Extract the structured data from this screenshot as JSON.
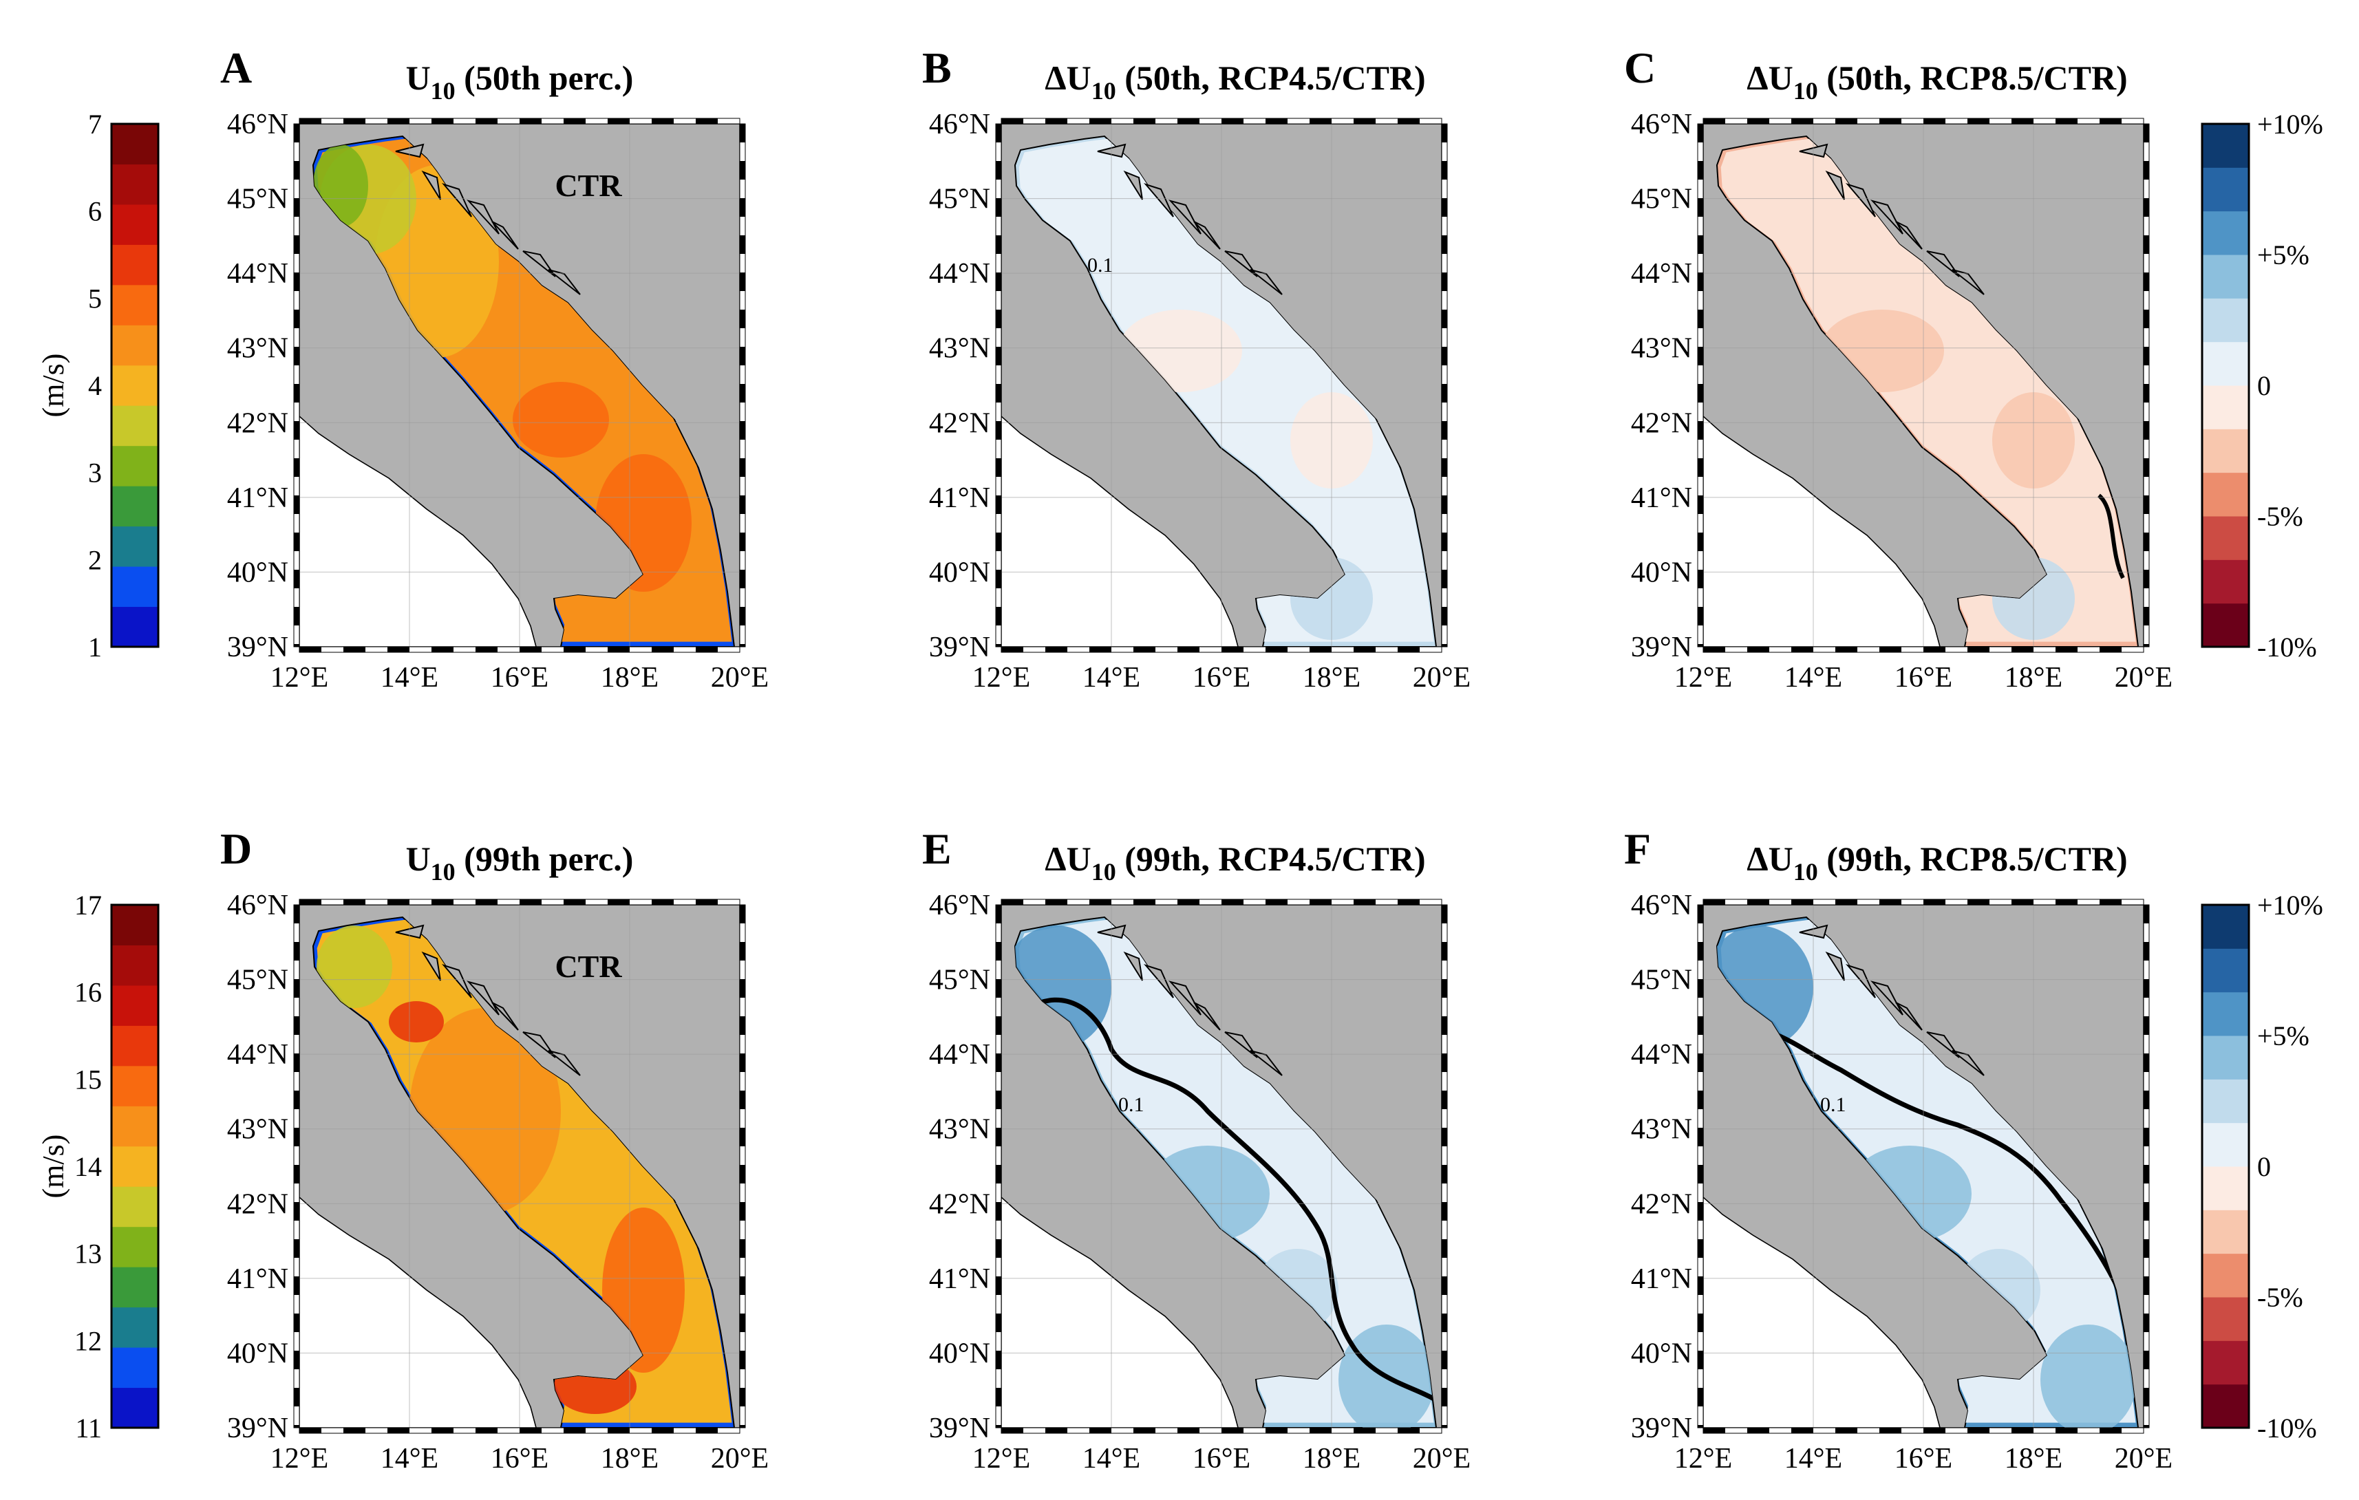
{
  "lat_ticks": [
    "39°N",
    "40°N",
    "41°N",
    "42°N",
    "43°N",
    "44°N",
    "45°N",
    "46°N"
  ],
  "lon_ticks": [
    "12°E",
    "14°E",
    "16°E",
    "18°E",
    "20°E"
  ],
  "contour_label": "0.1",
  "colors": {
    "land": "#b1b1b1",
    "outside": "#ffffff",
    "frame": "#000000"
  },
  "colorbars": [
    {
      "id": "u10-50",
      "unit": "(m/s)",
      "tick_labels": [
        "1",
        "2",
        "3",
        "4",
        "5",
        "6",
        "7"
      ],
      "colors": [
        "#0a14c8",
        "#0a4ef0",
        "#1a7d8e",
        "#3a9a3a",
        "#80b21a",
        "#c8c82a",
        "#f5b321",
        "#f7901a",
        "#f86a10",
        "#e8380c",
        "#c8120a",
        "#a50c0a",
        "#7a0606"
      ]
    },
    {
      "id": "dU-50",
      "unit": "",
      "tick_labels": [
        "+10%",
        "+5%",
        "0",
        "-5%",
        "-10%"
      ],
      "colors": [
        "#6b0019",
        "#a51a2d",
        "#cc4c44",
        "#ec8d6d",
        "#f8c7ae",
        "#fcebe3",
        "#e8f1f8",
        "#c1dbec",
        "#8cbfdd",
        "#4f94c6",
        "#2665a5",
        "#0e3b70"
      ]
    },
    {
      "id": "u10-99",
      "unit": "(m/s)",
      "tick_labels": [
        "11",
        "12",
        "13",
        "14",
        "15",
        "16",
        "17"
      ],
      "colors": [
        "#0a14c8",
        "#0a4ef0",
        "#1a7d8e",
        "#3a9a3a",
        "#80b21a",
        "#c8c82a",
        "#f5b321",
        "#f7901a",
        "#f86a10",
        "#e8380c",
        "#c8120a",
        "#a50c0a",
        "#7a0606"
      ]
    },
    {
      "id": "dU-99",
      "unit": "",
      "tick_labels": [
        "+10%",
        "+5%",
        "0",
        "-5%",
        "-10%"
      ],
      "colors": [
        "#6b0019",
        "#a51a2d",
        "#cc4c44",
        "#ec8d6d",
        "#f8c7ae",
        "#fcebe3",
        "#e8f1f8",
        "#c1dbec",
        "#8cbfdd",
        "#4f94c6",
        "#2665a5",
        "#0e3b70"
      ]
    }
  ],
  "panels": [
    {
      "letter": "A",
      "title_main": "U",
      "title_sub": "10",
      "title_rest": " (50th perc.)",
      "delta": false,
      "annotation": "CTR",
      "fill": "#f7901a",
      "coast": "#0a4ef0"
    },
    {
      "letter": "B",
      "title_main": "ΔU",
      "title_sub": "10",
      "title_rest": " (50th, RCP4.5/CTR)",
      "delta": true,
      "annotation": "",
      "fill": "#e8f1f8",
      "coast": "#c1dbec"
    },
    {
      "letter": "C",
      "title_main": "ΔU",
      "title_sub": "10",
      "title_rest": " (50th, RCP8.5/CTR)",
      "delta": true,
      "annotation": "",
      "fill": "#fbe1d4",
      "coast": "#f3b39a"
    },
    {
      "letter": "D",
      "title_main": "U",
      "title_sub": "10",
      "title_rest": " (99th perc.)",
      "delta": false,
      "annotation": "CTR",
      "fill": "#f5b321",
      "coast": "#0a4ef0"
    },
    {
      "letter": "E",
      "title_main": "ΔU",
      "title_sub": "10",
      "title_rest": " (99th, RCP4.5/CTR)",
      "delta": true,
      "annotation": "",
      "fill": "#e3eef7",
      "coast": "#8cbfdd"
    },
    {
      "letter": "F",
      "title_main": "ΔU",
      "title_sub": "10",
      "title_rest": " (99th, RCP8.5/CTR)",
      "delta": true,
      "annotation": "",
      "fill": "#e3eef7",
      "coast": "#4f94c6"
    }
  ]
}
